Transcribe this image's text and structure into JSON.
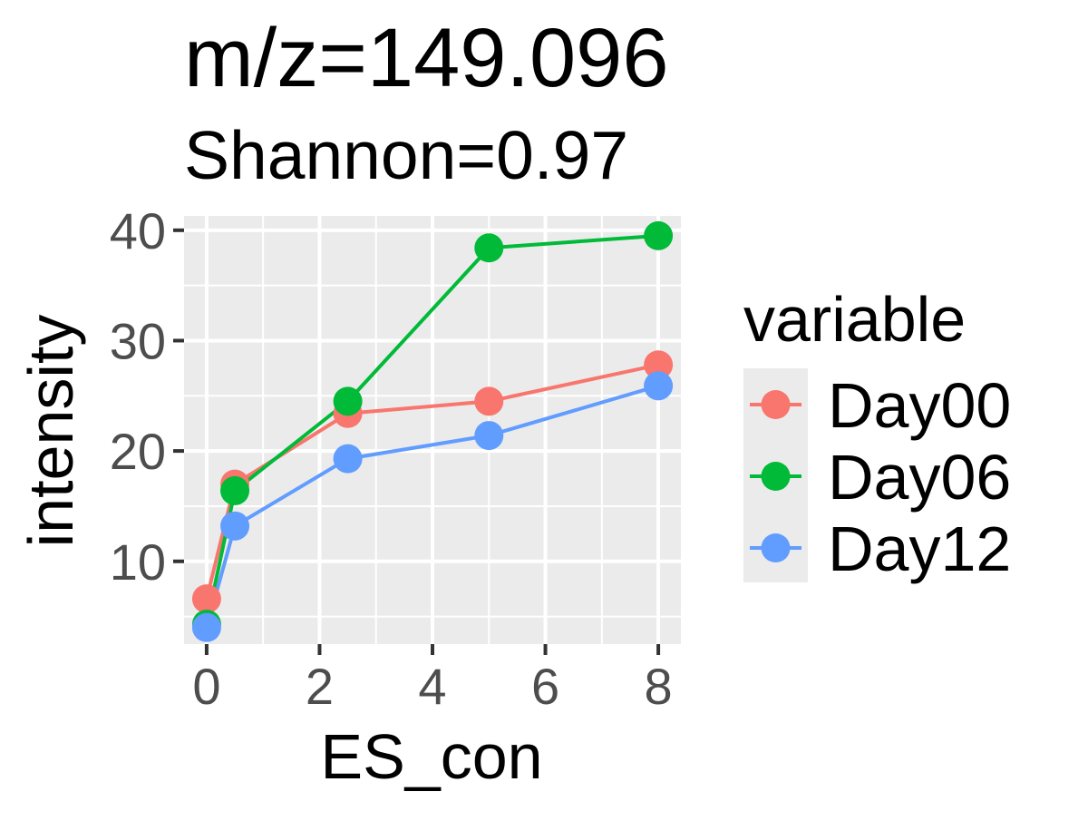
{
  "chart_data": {
    "type": "line",
    "title": "m/z=149.096",
    "subtitle": "Shannon=0.97",
    "xlabel": "ES_con",
    "ylabel": "intensity",
    "xlim": [
      -0.4,
      8.4
    ],
    "ylim": [
      2.5,
      41.3
    ],
    "x_ticks": [
      0,
      2,
      4,
      6,
      8
    ],
    "y_ticks": [
      10,
      20,
      30,
      40
    ],
    "x_minor": [
      1,
      3,
      5,
      7
    ],
    "y_minor": [
      5,
      15,
      25,
      35
    ],
    "grid": true,
    "legend": {
      "title": "variable",
      "position": "right"
    },
    "series": [
      {
        "name": "Day00",
        "color": "#F8766D",
        "x": [
          0,
          0.5,
          2.5,
          5,
          8
        ],
        "y": [
          6.6,
          17.0,
          23.4,
          24.5,
          27.8
        ]
      },
      {
        "name": "Day06",
        "color": "#00BA38",
        "x": [
          0,
          0.5,
          2.5,
          5,
          8
        ],
        "y": [
          4.3,
          16.4,
          24.5,
          38.4,
          39.5
        ]
      },
      {
        "name": "Day12",
        "color": "#619CFF",
        "x": [
          0,
          0.5,
          2.5,
          5,
          8
        ],
        "y": [
          4.0,
          13.2,
          19.3,
          21.4,
          25.9
        ]
      }
    ]
  }
}
